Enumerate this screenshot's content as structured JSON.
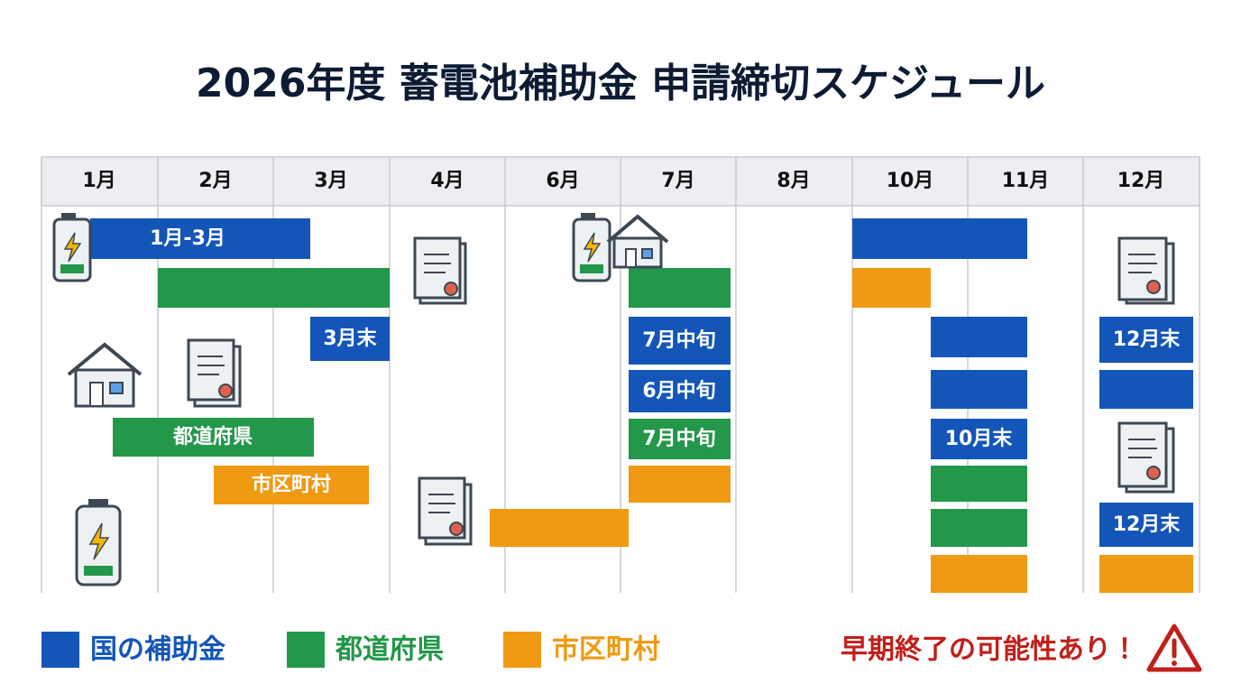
{
  "header": {
    "title": "2026年度 蓄電池補助金 申請締切スケジュール"
  },
  "months": [
    "1月",
    "2月",
    "3月",
    "4月",
    "6月",
    "7月",
    "8月",
    "10月",
    "11月",
    "12月"
  ],
  "bars": [
    {
      "label": "1月-3月"
    },
    {
      "label": "3月末"
    },
    {
      "label": "都道府県"
    },
    {
      "label": "市区町村"
    },
    {
      "label": "7月中旬"
    },
    {
      "label": "6月中旬"
    },
    {
      "label": "7月中旬"
    },
    {
      "label": "10月末"
    },
    {
      "label": "12月末"
    },
    {
      "label": "12月末"
    }
  ],
  "legend": [
    "国の補助金",
    "都道府県",
    "市区町村"
  ],
  "warning": "早期終了の可能性あり！"
}
